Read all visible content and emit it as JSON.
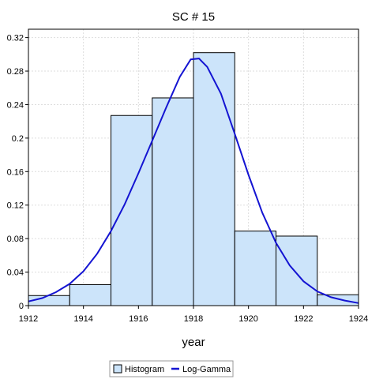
{
  "chart_data": {
    "type": "bar",
    "title": "SC # 15",
    "xlabel": "year",
    "ylabel": "",
    "xlim": [
      1912,
      1924
    ],
    "ylim": [
      0,
      0.33
    ],
    "x_ticks": [
      "1912",
      "1914",
      "1916",
      "1918",
      "1920",
      "1922",
      "1924"
    ],
    "y_ticks": [
      "0",
      "0.04",
      "0.08",
      "0.12",
      "0.16",
      "0.2",
      "0.24",
      "0.28",
      "0.32"
    ],
    "grid": true,
    "legend_position": "bottom-center",
    "histogram": {
      "name": "Histogram",
      "bins": [
        {
          "x0": 1912.0,
          "x1": 1913.5,
          "value": 0.012
        },
        {
          "x0": 1913.5,
          "x1": 1915.0,
          "value": 0.025
        },
        {
          "x0": 1915.0,
          "x1": 1916.5,
          "value": 0.227
        },
        {
          "x0": 1916.5,
          "x1": 1918.0,
          "value": 0.248
        },
        {
          "x0": 1918.0,
          "x1": 1919.5,
          "value": 0.302
        },
        {
          "x0": 1919.5,
          "x1": 1921.0,
          "value": 0.089
        },
        {
          "x0": 1921.0,
          "x1": 1922.5,
          "value": 0.083
        },
        {
          "x0": 1922.5,
          "x1": 1924.0,
          "value": 0.013
        }
      ]
    },
    "curve": {
      "name": "Log-Gamma",
      "points": [
        [
          1912.0,
          0.005
        ],
        [
          1912.5,
          0.009
        ],
        [
          1913.0,
          0.016
        ],
        [
          1913.5,
          0.026
        ],
        [
          1914.0,
          0.041
        ],
        [
          1914.5,
          0.062
        ],
        [
          1915.0,
          0.089
        ],
        [
          1915.5,
          0.121
        ],
        [
          1916.0,
          0.158
        ],
        [
          1916.5,
          0.197
        ],
        [
          1917.0,
          0.236
        ],
        [
          1917.5,
          0.273
        ],
        [
          1917.9,
          0.294
        ],
        [
          1918.2,
          0.295
        ],
        [
          1918.5,
          0.285
        ],
        [
          1919.0,
          0.253
        ],
        [
          1919.5,
          0.205
        ],
        [
          1920.0,
          0.156
        ],
        [
          1920.5,
          0.111
        ],
        [
          1921.0,
          0.075
        ],
        [
          1921.5,
          0.048
        ],
        [
          1922.0,
          0.029
        ],
        [
          1922.5,
          0.017
        ],
        [
          1923.0,
          0.01
        ],
        [
          1923.5,
          0.006
        ],
        [
          1924.0,
          0.003
        ]
      ]
    },
    "colors": {
      "bar_fill": "#cce4fa",
      "bar_stroke": "#000000",
      "curve": "#1414d2",
      "grid": "#dddddd"
    }
  }
}
